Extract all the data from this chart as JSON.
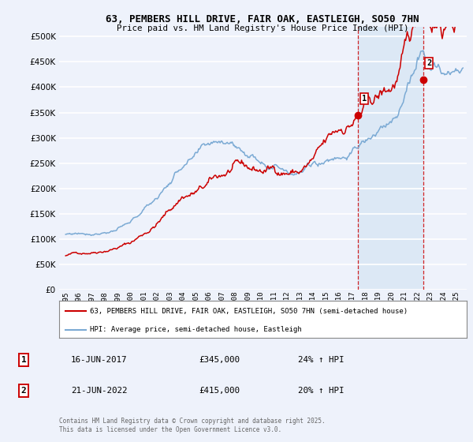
{
  "title_line1": "63, PEMBERS HILL DRIVE, FAIR OAK, EASTLEIGH, SO50 7HN",
  "title_line2": "Price paid vs. HM Land Registry's House Price Index (HPI)",
  "bg_color": "#eef2fb",
  "grid_color": "#ffffff",
  "red_color": "#cc0000",
  "blue_color": "#7baad4",
  "shade_color": "#dce8f5",
  "marker1_date_x": 2017.46,
  "marker2_date_x": 2022.47,
  "marker1_y": 345000,
  "marker2_y": 415000,
  "annotation1": [
    "1",
    "16-JUN-2017",
    "£345,000",
    "24% ↑ HPI"
  ],
  "annotation2": [
    "2",
    "21-JUN-2022",
    "£415,000",
    "20% ↑ HPI"
  ],
  "legend1": "63, PEMBERS HILL DRIVE, FAIR OAK, EASTLEIGH, SO50 7HN (semi-detached house)",
  "legend2": "HPI: Average price, semi-detached house, Eastleigh",
  "footer": "Contains HM Land Registry data © Crown copyright and database right 2025.\nThis data is licensed under the Open Government Licence v3.0.",
  "ylim": [
    0,
    520000
  ],
  "xlim_start": 1994.5,
  "xlim_end": 2025.8
}
